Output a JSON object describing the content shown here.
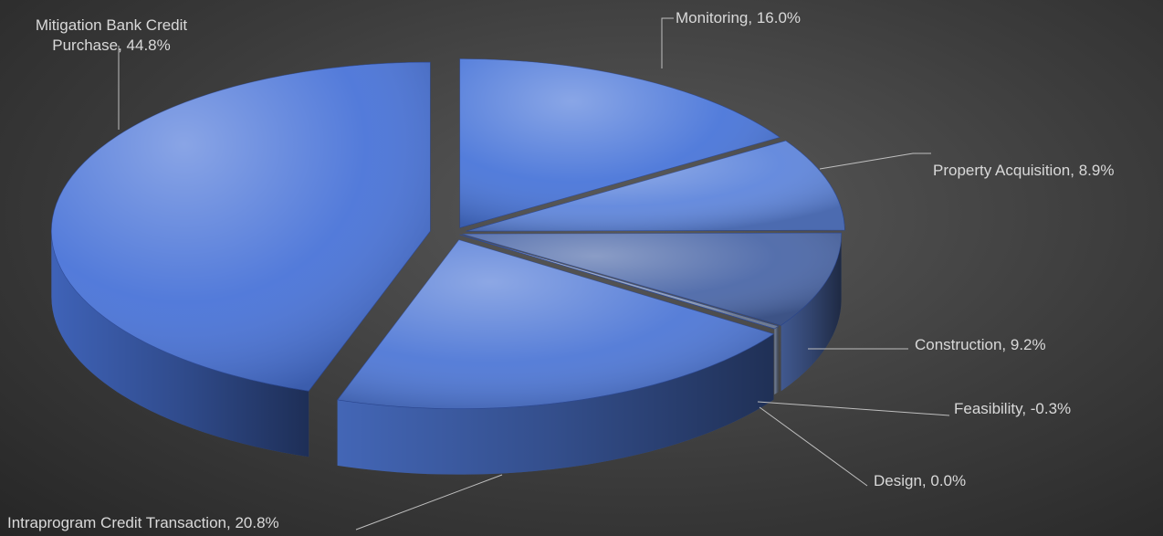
{
  "chart_data": {
    "type": "pie3d",
    "value_labels": [
      "Monitoring, 16.0%",
      "Property Acquisition, 8.9%",
      "Construction, 9.2%",
      "Feasibility, -0.3%",
      "Design, 0.0%",
      "Intraprogram Credit Transaction, 20.8%",
      "Mitigation Bank Credit Purchase, 44.8%"
    ],
    "values": [
      16.0,
      8.9,
      9.2,
      -0.3,
      0.0,
      20.8,
      44.8
    ],
    "colors": [
      "#4a76d9",
      "#5f86dc",
      "#4c68a8",
      "#8a9ab8",
      "#8a9ab8",
      "#4f78d6",
      "#4a74d8"
    ]
  }
}
